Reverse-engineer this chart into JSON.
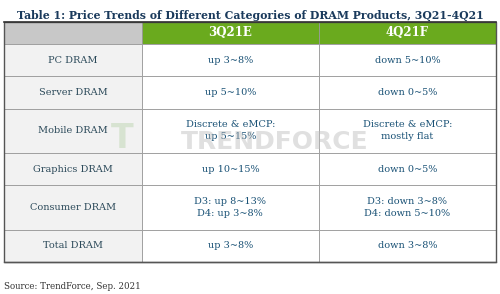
{
  "title": "Table 1: Price Trends of Different Categories of DRAM Products, 3Q21-4Q21",
  "col_headers": [
    "",
    "3Q21E",
    "4Q21F"
  ],
  "rows": [
    [
      "PC DRAM",
      "up 3~8%",
      "down 5~10%"
    ],
    [
      "Server DRAM",
      "up 5~10%",
      "down 0~5%"
    ],
    [
      "Mobile DRAM",
      "Discrete & eMCP:\nup 5~15%",
      "Discrete & eMCP:\nmostly flat"
    ],
    [
      "Graphics DRAM",
      "up 10~15%",
      "down 0~5%"
    ],
    [
      "Consumer DRAM",
      "D3: up 8~13%\nD4: up 3~8%",
      "D3: down 3~8%\nD4: down 5~10%"
    ],
    [
      "Total DRAM",
      "up 3~8%",
      "down 3~8%"
    ]
  ],
  "header_bg": "#6aaa1e",
  "header_text_color": "#ffffff",
  "col0_header_bg": "#c8c8c8",
  "cell_bg_white": "#ffffff",
  "cell_bg_light": "#f2f2f2",
  "col0_text_color": "#2c4a5a",
  "data_text_color": "#1a5276",
  "border_color": "#999999",
  "title_color": "#1a3a5c",
  "source_text": "Source: TrendForce, Sep. 2021",
  "watermark_text": "TRENDFORCE",
  "fig_bg": "#ffffff",
  "fig_width": 5.0,
  "fig_height": 2.94,
  "dpi": 100
}
